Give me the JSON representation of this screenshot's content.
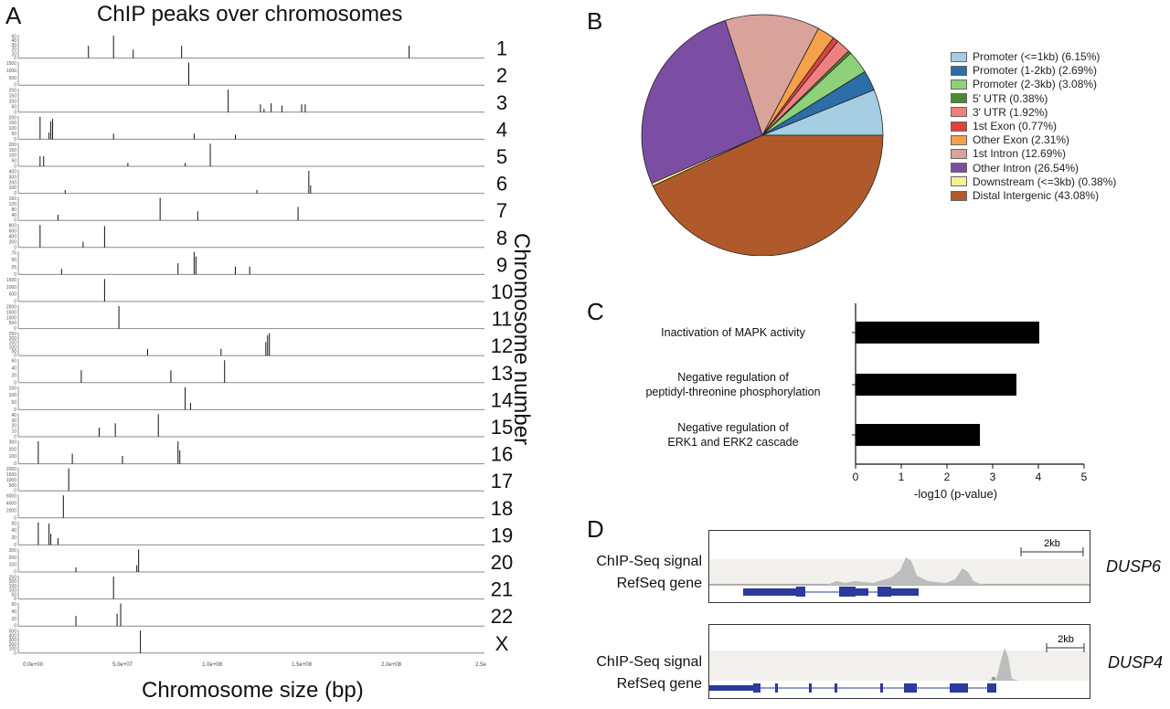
{
  "panels": {
    "A": "A",
    "B": "B",
    "C": "C",
    "D": "D"
  },
  "panel_a": {
    "title": "ChIP peaks over chromosomes",
    "xlabel": "Chromosome size (bp)",
    "ylabel": "Chromosome number",
    "x_ticks": [
      "0.0e+00",
      "5.0e+07",
      "1.0e+08",
      "1.5e+08",
      "2.0e+08",
      "2.5e"
    ],
    "chromosomes": [
      {
        "label": "1",
        "yticks": [
          "50",
          "40",
          "30",
          "20",
          "10",
          "0"
        ],
        "peaks": [
          [
            31,
            0.55
          ],
          [
            45,
            1.0
          ],
          [
            56,
            0.38
          ],
          [
            83,
            0.55
          ],
          [
            210,
            0.55
          ]
        ]
      },
      {
        "label": "2",
        "yticks": [
          "1500",
          "1000",
          "500",
          "0"
        ],
        "peaks": [
          [
            87,
            1.0
          ]
        ]
      },
      {
        "label": "3",
        "yticks": [
          "200",
          "150",
          "100",
          "50",
          "0"
        ],
        "peaks": [
          [
            109,
            1.0
          ],
          [
            127,
            0.35
          ],
          [
            129,
            0.15
          ],
          [
            133,
            0.4
          ],
          [
            139,
            0.3
          ],
          [
            150,
            0.35
          ],
          [
            152,
            0.35
          ]
        ]
      },
      {
        "label": "4",
        "yticks": [
          "200",
          "150",
          "100",
          "50",
          "0"
        ],
        "peaks": [
          [
            4,
            1.0
          ],
          [
            9,
            0.3
          ],
          [
            10,
            0.8
          ],
          [
            11,
            0.9
          ],
          [
            45,
            0.25
          ],
          [
            90,
            0.25
          ],
          [
            113,
            0.2
          ]
        ]
      },
      {
        "label": "5",
        "yticks": [
          "200",
          "150",
          "100",
          "50",
          "0"
        ],
        "peaks": [
          [
            4,
            0.45
          ],
          [
            6,
            0.45
          ],
          [
            53,
            0.15
          ],
          [
            99,
            1.0
          ],
          [
            85,
            0.15
          ]
        ]
      },
      {
        "label": "6",
        "yticks": [
          "400",
          "300",
          "200",
          "100",
          "0"
        ],
        "peaks": [
          [
            18,
            0.15
          ],
          [
            125,
            0.15
          ],
          [
            154,
            1.0
          ],
          [
            155,
            0.35
          ]
        ]
      },
      {
        "label": "7",
        "yticks": [
          "160",
          "120",
          "80",
          "40",
          "0"
        ],
        "peaks": [
          [
            14,
            0.25
          ],
          [
            71,
            1.0
          ],
          [
            92,
            0.4
          ],
          [
            148,
            0.6
          ]
        ]
      },
      {
        "label": "8",
        "yticks": [
          "800",
          "600",
          "400",
          "200",
          "0"
        ],
        "peaks": [
          [
            4,
            1.0
          ],
          [
            28,
            0.25
          ],
          [
            40,
            0.95
          ]
        ]
      },
      {
        "label": "9",
        "yticks": [
          "75",
          "50",
          "25",
          "0"
        ],
        "peaks": [
          [
            16,
            0.25
          ],
          [
            81,
            0.5
          ],
          [
            90,
            1.0
          ],
          [
            91,
            0.8
          ],
          [
            113,
            0.35
          ],
          [
            121,
            0.35
          ]
        ]
      },
      {
        "label": "10",
        "yticks": [
          "1500",
          "1000",
          "500",
          "0"
        ],
        "peaks": [
          [
            40,
            1.0
          ]
        ]
      },
      {
        "label": "11",
        "yticks": [
          "2000",
          "1500",
          "1000",
          "500",
          "0"
        ],
        "peaks": [
          [
            48,
            1.0
          ]
        ]
      },
      {
        "label": "12",
        "yticks": [
          "250",
          "200",
          "150",
          "100",
          "50",
          "0"
        ],
        "peaks": [
          [
            64,
            0.3
          ],
          [
            105,
            0.3
          ],
          [
            130,
            0.6
          ],
          [
            131,
            0.9
          ],
          [
            132,
            1.0
          ]
        ]
      },
      {
        "label": "13",
        "yticks": [
          "60",
          "40",
          "20",
          "0"
        ],
        "peaks": [
          [
            27,
            0.55
          ],
          [
            77,
            0.55
          ],
          [
            107,
            1.0
          ]
        ]
      },
      {
        "label": "14",
        "yticks": [
          "150",
          "100",
          "50",
          "0"
        ],
        "peaks": [
          [
            85,
            1.0
          ],
          [
            88,
            0.3
          ]
        ]
      },
      {
        "label": "15",
        "yticks": [
          "40",
          "30",
          "20",
          "10",
          "0"
        ],
        "peaks": [
          [
            37,
            0.4
          ],
          [
            46,
            0.6
          ],
          [
            70,
            1.0
          ]
        ]
      },
      {
        "label": "16",
        "yticks": [
          "300",
          "200",
          "100",
          "0"
        ],
        "peaks": [
          [
            3,
            1.0
          ],
          [
            22,
            0.45
          ],
          [
            50,
            0.35
          ],
          [
            81,
            1.0
          ],
          [
            82,
            0.6
          ]
        ]
      },
      {
        "label": "17",
        "yticks": [
          "2000",
          "1500",
          "1000",
          "500",
          "0"
        ],
        "peaks": [
          [
            20,
            1.0
          ]
        ]
      },
      {
        "label": "18",
        "yticks": [
          "6000",
          "4000",
          "2000",
          "0"
        ],
        "peaks": [
          [
            17,
            1.0
          ]
        ]
      },
      {
        "label": "19",
        "yticks": [
          "60",
          "40",
          "20",
          "0"
        ],
        "peaks": [
          [
            3,
            1.0
          ],
          [
            9,
            0.95
          ],
          [
            10,
            0.5
          ],
          [
            14,
            0.3
          ]
        ]
      },
      {
        "label": "20",
        "yticks": [
          "300",
          "200",
          "100",
          "0"
        ],
        "peaks": [
          [
            59,
            1.0
          ],
          [
            58,
            0.3
          ],
          [
            24,
            0.2
          ]
        ]
      },
      {
        "label": "21",
        "yticks": [
          "250",
          "200",
          "150",
          "100",
          "50",
          "0"
        ],
        "peaks": [
          [
            45,
            1.0
          ]
        ]
      },
      {
        "label": "22",
        "yticks": [
          "60",
          "40",
          "20",
          "0"
        ],
        "peaks": [
          [
            24,
            0.45
          ],
          [
            47,
            0.55
          ],
          [
            49,
            1.0
          ]
        ]
      },
      {
        "label": "X",
        "yticks": [
          "500",
          "400",
          "300",
          "200",
          "100",
          "0"
        ],
        "peaks": [
          [
            60,
            1.0
          ]
        ]
      }
    ]
  },
  "chart_data": [
    {
      "type": "pie",
      "panel": "B",
      "slices": [
        {
          "name": "Promoter (<=1kb) (6.15%)",
          "value": 6.15,
          "color": "#a6cee3"
        },
        {
          "name": "Promoter (1-2kb) (2.69%)",
          "value": 2.69,
          "color": "#2b6ea8"
        },
        {
          "name": "Promoter (2-3kb) (3.08%)",
          "value": 3.08,
          "color": "#8fd17a"
        },
        {
          "name": "5' UTR (0.38%)",
          "value": 0.38,
          "color": "#4a8a30"
        },
        {
          "name": "3' UTR (1.92%)",
          "value": 1.92,
          "color": "#f08080"
        },
        {
          "name": "1st Exon (0.77%)",
          "value": 0.77,
          "color": "#e0423e"
        },
        {
          "name": "Other Exon (2.31%)",
          "value": 2.31,
          "color": "#f5a04a"
        },
        {
          "name": "1st Intron (12.69%)",
          "value": 12.69,
          "color": "#d9a39b"
        },
        {
          "name": "Other Intron (26.54%)",
          "value": 26.54,
          "color": "#7b4ea3"
        },
        {
          "name": "Downstream (<=3kb) (0.38%)",
          "value": 0.38,
          "color": "#f5ef9c"
        },
        {
          "name": "Distal Intergenic (43.08%)",
          "value": 43.08,
          "color": "#b05a2b"
        }
      ]
    },
    {
      "type": "bar",
      "panel": "C",
      "orientation": "horizontal",
      "categories": [
        "Inactivation of MAPK activity",
        "Negative regulation of peptidyl-threonine phosphorylation",
        "Negative regulation of ERK1 and ERK2 cascade"
      ],
      "category_lines": [
        [
          "Inactivation of MAPK activity"
        ],
        [
          "Negative regulation of",
          "peptidyl-threonine phosphorylation"
        ],
        [
          "Negative regulation of",
          "ERK1 and ERK2 cascade"
        ]
      ],
      "values": [
        4.02,
        3.52,
        2.72
      ],
      "xlabel": "-log10 (p-value)",
      "xlim": [
        0,
        5
      ],
      "x_ticks": [
        "0",
        "1",
        "2",
        "3",
        "4",
        "5"
      ],
      "bar_color": "#000000"
    }
  ],
  "panel_d": {
    "tracks": [
      {
        "gene": "DUSP6",
        "signal_label": "ChIP-Seq signal",
        "gene_label": "RefSeq gene",
        "scale": "2kb"
      },
      {
        "gene": "DUSP4",
        "signal_label": "ChIP-Seq signal",
        "gene_label": "RefSeq gene",
        "scale": "2kb"
      }
    ]
  }
}
